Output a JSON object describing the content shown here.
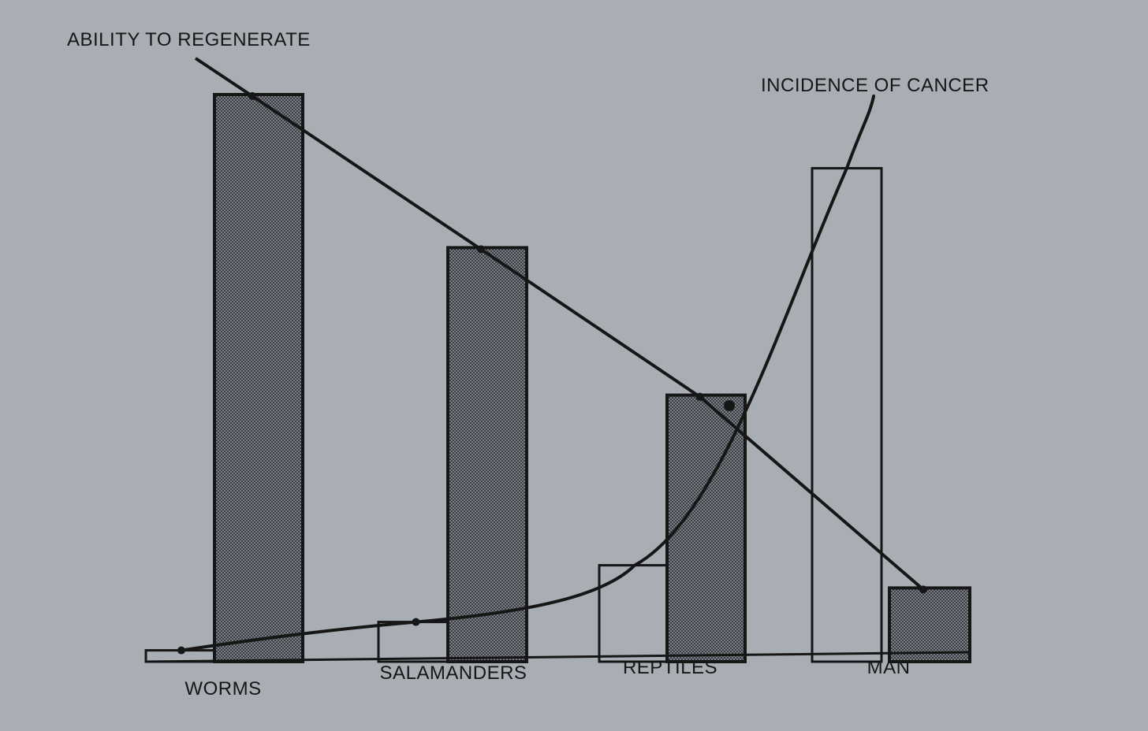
{
  "chart_data": {
    "type": "bar",
    "categories": [
      "WORMS",
      "SALAMANDERS",
      "REPTILES",
      "MAN"
    ],
    "series": [
      {
        "name": "ABILITY TO REGENERATE",
        "style": "shaded",
        "values": [
          100,
          73,
          47,
          13
        ]
      },
      {
        "name": "INCIDENCE OF CANCER",
        "style": "outline",
        "values": [
          2,
          7,
          17,
          87
        ]
      }
    ],
    "trend_lines": [
      "ABILITY TO REGENERATE",
      "INCIDENCE OF CANCER"
    ],
    "ylim": [
      0,
      100
    ],
    "legend": "callout labels with leader lines",
    "grid": false,
    "colors": {
      "background": "#a9aeb5",
      "ink": "#161616",
      "shade": "#575c63"
    }
  }
}
